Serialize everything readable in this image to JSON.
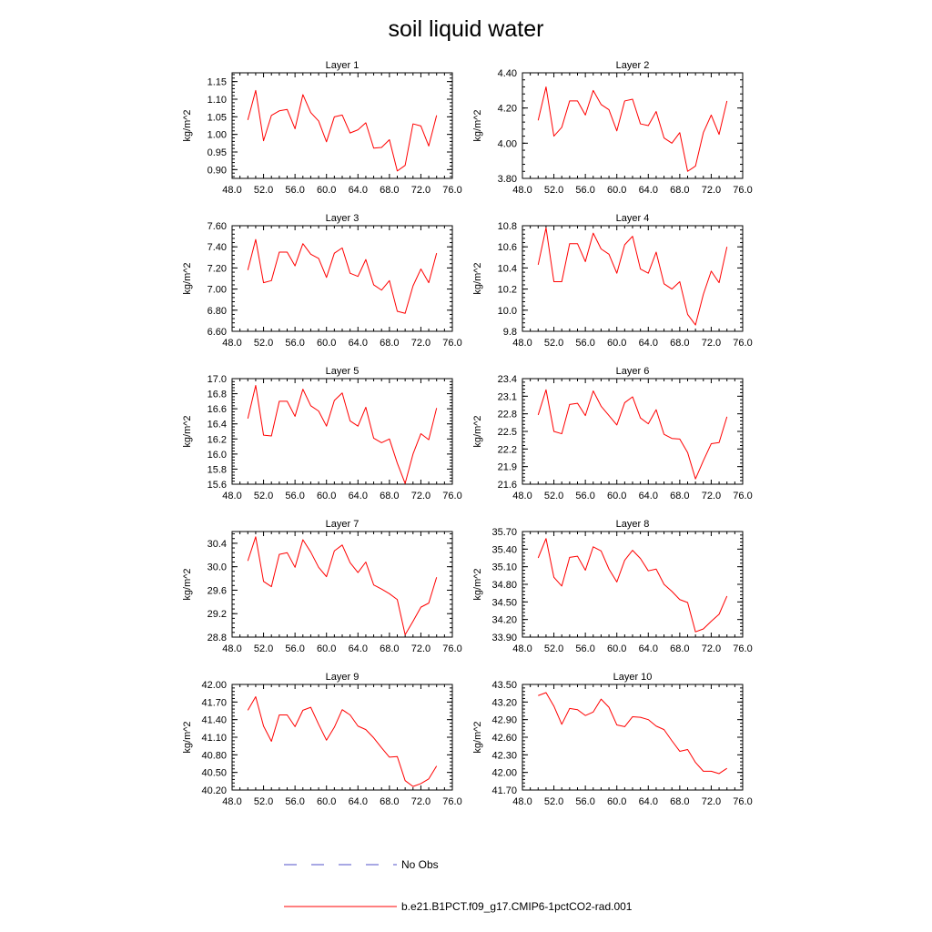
{
  "title": "soil liquid water",
  "colors": {
    "model": "#ff0000",
    "obs": "#5050c8",
    "axis": "#000000"
  },
  "legend": {
    "obs_label": "No Obs",
    "model_label": "b.e21.B1PCT.f09_g17.CMIP6-1pctCO2-rad.001"
  },
  "chart_data": [
    {
      "type": "line",
      "title": "Layer 1",
      "xlabel": "",
      "ylabel": "kg/m^2",
      "xlim": [
        48,
        76
      ],
      "ylim": [
        0.875,
        1.175
      ],
      "x_ticks": [
        48,
        52,
        56,
        60,
        64,
        68,
        72,
        76
      ],
      "x_tick_labels": [
        "48.0",
        "52.0",
        "56.0",
        "60.0",
        "64.0",
        "68.0",
        "72.0",
        "76.0"
      ],
      "y_ticks": [
        0.9,
        0.95,
        1.0,
        1.05,
        1.1,
        1.15
      ],
      "y_tick_labels": [
        "0.90",
        "0.95",
        "1.00",
        "1.05",
        "1.10",
        "1.15"
      ],
      "grid": false,
      "series": [
        {
          "x": [
            50,
            51,
            52,
            53,
            54,
            55,
            56,
            57,
            58,
            59,
            60,
            61,
            62,
            63,
            64,
            65,
            66,
            67,
            68,
            69,
            70,
            71,
            72,
            73,
            74
          ],
          "values": [
            1.041,
            1.125,
            0.982,
            1.054,
            1.067,
            1.071,
            1.016,
            1.113,
            1.062,
            1.038,
            0.979,
            1.05,
            1.055,
            1.004,
            1.013,
            1.033,
            0.961,
            0.963,
            0.985,
            0.896,
            0.912,
            1.03,
            1.024,
            0.967,
            1.054
          ]
        }
      ]
    },
    {
      "type": "line",
      "title": "Layer 2",
      "xlabel": "",
      "ylabel": "kg/m^2",
      "xlim": [
        48,
        76
      ],
      "ylim": [
        3.8,
        4.4
      ],
      "x_ticks": [
        48,
        52,
        56,
        60,
        64,
        68,
        72,
        76
      ],
      "x_tick_labels": [
        "48.0",
        "52.0",
        "56.0",
        "60.0",
        "64.0",
        "68.0",
        "72.0",
        "76.0"
      ],
      "y_ticks": [
        3.8,
        4.0,
        4.2,
        4.4
      ],
      "y_tick_labels": [
        "3.80",
        "4.00",
        "4.20",
        "4.40"
      ],
      "grid": false,
      "series": [
        {
          "x": [
            50,
            51,
            52,
            53,
            54,
            55,
            56,
            57,
            58,
            59,
            60,
            61,
            62,
            63,
            64,
            65,
            66,
            67,
            68,
            69,
            70,
            71,
            72,
            73,
            74
          ],
          "values": [
            4.13,
            4.32,
            4.04,
            4.09,
            4.24,
            4.24,
            4.16,
            4.3,
            4.22,
            4.19,
            4.07,
            4.24,
            4.25,
            4.11,
            4.1,
            4.18,
            4.03,
            4.0,
            4.06,
            3.84,
            3.87,
            4.06,
            4.16,
            4.05,
            4.24
          ]
        }
      ]
    },
    {
      "type": "line",
      "title": "Layer 3",
      "xlabel": "",
      "ylabel": "kg/m^2",
      "xlim": [
        48,
        76
      ],
      "ylim": [
        6.6,
        7.6
      ],
      "x_ticks": [
        48,
        52,
        56,
        60,
        64,
        68,
        72,
        76
      ],
      "x_tick_labels": [
        "48.0",
        "52.0",
        "56.0",
        "60.0",
        "64.0",
        "68.0",
        "72.0",
        "76.0"
      ],
      "y_ticks": [
        6.6,
        6.8,
        7.0,
        7.2,
        7.4,
        7.6
      ],
      "y_tick_labels": [
        "6.60",
        "6.80",
        "7.00",
        "7.20",
        "7.40",
        "7.60"
      ],
      "grid": false,
      "series": [
        {
          "x": [
            50,
            51,
            52,
            53,
            54,
            55,
            56,
            57,
            58,
            59,
            60,
            61,
            62,
            63,
            64,
            65,
            66,
            67,
            68,
            69,
            70,
            71,
            72,
            73,
            74
          ],
          "values": [
            7.18,
            7.47,
            7.06,
            7.08,
            7.35,
            7.35,
            7.22,
            7.43,
            7.33,
            7.29,
            7.11,
            7.34,
            7.39,
            7.15,
            7.12,
            7.28,
            7.04,
            6.99,
            7.08,
            6.79,
            6.77,
            7.03,
            7.19,
            7.06,
            7.34
          ]
        }
      ]
    },
    {
      "type": "line",
      "title": "Layer 4",
      "xlabel": "",
      "ylabel": "kg/m^2",
      "xlim": [
        48,
        76
      ],
      "ylim": [
        9.8,
        10.8
      ],
      "x_ticks": [
        48,
        52,
        56,
        60,
        64,
        68,
        72,
        76
      ],
      "x_tick_labels": [
        "48.0",
        "52.0",
        "56.0",
        "60.0",
        "64.0",
        "68.0",
        "72.0",
        "76.0"
      ],
      "y_ticks": [
        9.8,
        10.0,
        10.2,
        10.4,
        10.6,
        10.8
      ],
      "y_tick_labels": [
        "9.8",
        "10.0",
        "10.2",
        "10.4",
        "10.6",
        "10.8"
      ],
      "grid": false,
      "series": [
        {
          "x": [
            50,
            51,
            52,
            53,
            54,
            55,
            56,
            57,
            58,
            59,
            60,
            61,
            62,
            63,
            64,
            65,
            66,
            67,
            68,
            69,
            70,
            71,
            72,
            73,
            74
          ],
          "values": [
            10.43,
            10.78,
            10.27,
            10.27,
            10.63,
            10.63,
            10.46,
            10.73,
            10.58,
            10.53,
            10.35,
            10.62,
            10.7,
            10.39,
            10.35,
            10.55,
            10.25,
            10.2,
            10.27,
            9.96,
            9.86,
            10.15,
            10.37,
            10.26,
            10.6
          ]
        }
      ]
    },
    {
      "type": "line",
      "title": "Layer 5",
      "xlabel": "",
      "ylabel": "kg/m^2",
      "xlim": [
        48,
        76
      ],
      "ylim": [
        15.6,
        17.0
      ],
      "x_ticks": [
        48,
        52,
        56,
        60,
        64,
        68,
        72,
        76
      ],
      "x_tick_labels": [
        "48.0",
        "52.0",
        "56.0",
        "60.0",
        "64.0",
        "68.0",
        "72.0",
        "76.0"
      ],
      "y_ticks": [
        15.6,
        15.8,
        16.0,
        16.2,
        16.4,
        16.6,
        16.8,
        17.0
      ],
      "y_tick_labels": [
        "15.6",
        "15.8",
        "16.0",
        "16.2",
        "16.4",
        "16.6",
        "16.8",
        "17.0"
      ],
      "grid": false,
      "series": [
        {
          "x": [
            50,
            51,
            52,
            53,
            54,
            55,
            56,
            57,
            58,
            59,
            60,
            61,
            62,
            63,
            64,
            65,
            66,
            67,
            68,
            69,
            70,
            71,
            72,
            73,
            74
          ],
          "values": [
            16.47,
            16.91,
            16.25,
            16.24,
            16.7,
            16.7,
            16.5,
            16.86,
            16.64,
            16.57,
            16.37,
            16.71,
            16.81,
            16.44,
            16.37,
            16.62,
            16.21,
            16.15,
            16.2,
            15.88,
            15.61,
            16.0,
            16.27,
            16.19,
            16.61
          ]
        }
      ]
    },
    {
      "type": "line",
      "title": "Layer 6",
      "xlabel": "",
      "ylabel": "kg/m^2",
      "xlim": [
        48,
        76
      ],
      "ylim": [
        21.6,
        23.4
      ],
      "x_ticks": [
        48,
        52,
        56,
        60,
        64,
        68,
        72,
        76
      ],
      "x_tick_labels": [
        "48.0",
        "52.0",
        "56.0",
        "60.0",
        "64.0",
        "68.0",
        "72.0",
        "76.0"
      ],
      "y_ticks": [
        21.6,
        21.9,
        22.2,
        22.5,
        22.8,
        23.1,
        23.4
      ],
      "y_tick_labels": [
        "21.6",
        "21.9",
        "22.2",
        "22.5",
        "22.8",
        "23.1",
        "23.4"
      ],
      "grid": false,
      "series": [
        {
          "x": [
            50,
            51,
            52,
            53,
            54,
            55,
            56,
            57,
            58,
            59,
            60,
            61,
            62,
            63,
            64,
            65,
            66,
            67,
            68,
            69,
            70,
            71,
            72,
            73,
            74
          ],
          "values": [
            22.78,
            23.21,
            22.5,
            22.46,
            22.96,
            22.98,
            22.77,
            23.19,
            22.93,
            22.77,
            22.61,
            22.99,
            23.09,
            22.73,
            22.63,
            22.87,
            22.45,
            22.38,
            22.37,
            22.14,
            21.69,
            22.0,
            22.29,
            22.31,
            22.75
          ]
        }
      ]
    },
    {
      "type": "line",
      "title": "Layer 7",
      "xlabel": "",
      "ylabel": "kg/m^2",
      "xlim": [
        48,
        76
      ],
      "ylim": [
        28.8,
        30.6
      ],
      "x_ticks": [
        48,
        52,
        56,
        60,
        64,
        68,
        72,
        76
      ],
      "x_tick_labels": [
        "48.0",
        "52.0",
        "56.0",
        "60.0",
        "64.0",
        "68.0",
        "72.0",
        "76.0"
      ],
      "y_ticks": [
        28.8,
        29.2,
        29.6,
        30.0,
        30.4
      ],
      "y_tick_labels": [
        "28.8",
        "29.2",
        "29.6",
        "30.0",
        "30.4"
      ],
      "grid": false,
      "series": [
        {
          "x": [
            50,
            51,
            52,
            53,
            54,
            55,
            56,
            57,
            58,
            59,
            60,
            61,
            62,
            63,
            64,
            65,
            66,
            67,
            68,
            69,
            70,
            71,
            72,
            73,
            74
          ],
          "values": [
            30.1,
            30.51,
            29.75,
            29.66,
            30.21,
            30.24,
            29.99,
            30.46,
            30.25,
            29.99,
            29.83,
            30.27,
            30.37,
            30.07,
            29.9,
            30.08,
            29.69,
            29.62,
            29.54,
            29.44,
            28.84,
            29.07,
            29.31,
            29.38,
            29.82
          ]
        }
      ]
    },
    {
      "type": "line",
      "title": "Layer 8",
      "xlabel": "",
      "ylabel": "kg/m^2",
      "xlim": [
        48,
        76
      ],
      "ylim": [
        33.9,
        35.7
      ],
      "x_ticks": [
        48,
        52,
        56,
        60,
        64,
        68,
        72,
        76
      ],
      "x_tick_labels": [
        "48.0",
        "52.0",
        "56.0",
        "60.0",
        "64.0",
        "68.0",
        "72.0",
        "76.0"
      ],
      "y_ticks": [
        33.9,
        34.2,
        34.5,
        34.8,
        35.1,
        35.4,
        35.7
      ],
      "y_tick_labels": [
        "33.90",
        "34.20",
        "34.50",
        "34.80",
        "35.10",
        "35.40",
        "35.70"
      ],
      "grid": false,
      "series": [
        {
          "x": [
            50,
            51,
            52,
            53,
            54,
            55,
            56,
            57,
            58,
            59,
            60,
            61,
            62,
            63,
            64,
            65,
            66,
            67,
            68,
            69,
            70,
            71,
            72,
            73,
            74
          ],
          "values": [
            35.25,
            35.58,
            34.92,
            34.77,
            35.26,
            35.28,
            35.04,
            35.44,
            35.37,
            35.06,
            34.84,
            35.21,
            35.38,
            35.24,
            35.03,
            35.06,
            34.8,
            34.68,
            34.54,
            34.49,
            33.99,
            34.04,
            34.17,
            34.29,
            34.6
          ]
        }
      ]
    },
    {
      "type": "line",
      "title": "Layer 9",
      "xlabel": "",
      "ylabel": "kg/m^2",
      "xlim": [
        48,
        76
      ],
      "ylim": [
        40.2,
        42.0
      ],
      "x_ticks": [
        48,
        52,
        56,
        60,
        64,
        68,
        72,
        76
      ],
      "x_tick_labels": [
        "48.0",
        "52.0",
        "56.0",
        "60.0",
        "64.0",
        "68.0",
        "72.0",
        "76.0"
      ],
      "y_ticks": [
        40.2,
        40.5,
        40.8,
        41.1,
        41.4,
        41.7,
        42.0
      ],
      "y_tick_labels": [
        "40.20",
        "40.50",
        "40.80",
        "41.10",
        "41.40",
        "41.70",
        "42.00"
      ],
      "grid": false,
      "series": [
        {
          "x": [
            50,
            51,
            52,
            53,
            54,
            55,
            56,
            57,
            58,
            59,
            60,
            61,
            62,
            63,
            64,
            65,
            66,
            67,
            68,
            69,
            70,
            71,
            72,
            73,
            74
          ],
          "values": [
            41.56,
            41.79,
            41.29,
            41.03,
            41.48,
            41.48,
            41.28,
            41.56,
            41.61,
            41.32,
            41.05,
            41.27,
            41.57,
            41.48,
            41.29,
            41.23,
            41.09,
            40.92,
            40.76,
            40.77,
            40.36,
            40.26,
            40.31,
            40.39,
            40.61
          ]
        }
      ]
    },
    {
      "type": "line",
      "title": "Layer 10",
      "xlabel": "",
      "ylabel": "kg/m^2",
      "xlim": [
        48,
        76
      ],
      "ylim": [
        41.7,
        43.5
      ],
      "x_ticks": [
        48,
        52,
        56,
        60,
        64,
        68,
        72,
        76
      ],
      "x_tick_labels": [
        "48.0",
        "52.0",
        "56.0",
        "60.0",
        "64.0",
        "68.0",
        "72.0",
        "76.0"
      ],
      "y_ticks": [
        41.7,
        42.0,
        42.3,
        42.6,
        42.9,
        43.2,
        43.5
      ],
      "y_tick_labels": [
        "41.70",
        "42.00",
        "42.30",
        "42.60",
        "42.90",
        "43.20",
        "43.50"
      ],
      "grid": false,
      "series": [
        {
          "x": [
            50,
            51,
            52,
            53,
            54,
            55,
            56,
            57,
            58,
            59,
            60,
            61,
            62,
            63,
            64,
            65,
            66,
            67,
            68,
            69,
            70,
            71,
            72,
            73,
            74
          ],
          "values": [
            43.31,
            43.36,
            43.13,
            42.82,
            43.09,
            43.07,
            42.97,
            43.03,
            43.25,
            43.11,
            42.81,
            42.78,
            42.95,
            42.94,
            42.9,
            42.79,
            42.73,
            42.54,
            42.36,
            42.39,
            42.17,
            42.02,
            42.02,
            41.98,
            42.07
          ]
        }
      ]
    }
  ]
}
